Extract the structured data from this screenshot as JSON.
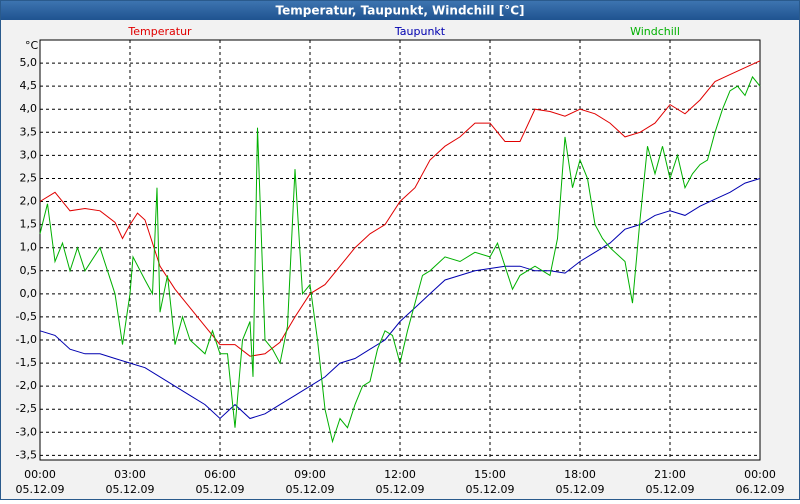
{
  "chart_data": {
    "type": "line",
    "title": "Temperatur, Taupunkt, Windchill [°C]",
    "y_unit": "°C",
    "grid": true,
    "xlim": [
      0,
      24
    ],
    "xticks": [
      {
        "value": 0,
        "label": "00:00"
      },
      {
        "value": 3,
        "label": "03:00"
      },
      {
        "value": 6,
        "label": "06:00"
      },
      {
        "value": 9,
        "label": "09:00"
      },
      {
        "value": 12,
        "label": "12:00"
      },
      {
        "value": 15,
        "label": "15:00"
      },
      {
        "value": 18,
        "label": "18:00"
      },
      {
        "value": 21,
        "label": "21:00"
      },
      {
        "value": 24,
        "label": "00:00"
      }
    ],
    "xtick_dates": [
      "05.12.09",
      "05.12.09",
      "05.12.09",
      "05.12.09",
      "05.12.09",
      "05.12.09",
      "05.12.09",
      "05.12.09",
      "06.12.09"
    ],
    "ylim": [
      -3.6,
      5.5
    ],
    "yticks": [
      {
        "value": -3.5,
        "label": "-3,5"
      },
      {
        "value": -3,
        "label": "-3,0"
      },
      {
        "value": -2.5,
        "label": "-2,5"
      },
      {
        "value": -2,
        "label": "-2,0"
      },
      {
        "value": -1.5,
        "label": "-1,5"
      },
      {
        "value": -1,
        "label": "-1,0"
      },
      {
        "value": -0.5,
        "label": "-0,5"
      },
      {
        "value": 0,
        "label": "0,0"
      },
      {
        "value": 0.5,
        "label": "0,5"
      },
      {
        "value": 1,
        "label": "1,0"
      },
      {
        "value": 1.5,
        "label": "1,5"
      },
      {
        "value": 2,
        "label": "2,0"
      },
      {
        "value": 2.5,
        "label": "2,5"
      },
      {
        "value": 3,
        "label": "3,0"
      },
      {
        "value": 3.5,
        "label": "3,5"
      },
      {
        "value": 4,
        "label": "4,0"
      },
      {
        "value": 4.5,
        "label": "4,5"
      },
      {
        "value": 5,
        "label": "5,0"
      }
    ],
    "series": [
      {
        "name": "Temperatur",
        "color": "#e00000",
        "x": [
          0,
          0.5,
          1,
          1.5,
          2,
          2.5,
          2.75,
          3,
          3.25,
          3.5,
          4,
          4.5,
          5,
          5.5,
          6,
          6.5,
          7,
          7.5,
          8,
          8.5,
          9,
          9.5,
          10,
          10.5,
          11,
          11.5,
          12,
          12.5,
          13,
          13.5,
          14,
          14.5,
          15,
          15.5,
          16,
          16.5,
          17,
          17.5,
          18,
          18.5,
          19,
          19.5,
          20,
          20.5,
          21,
          21.5,
          22,
          22.5,
          23,
          23.5,
          24
        ],
        "values": [
          2.0,
          2.2,
          1.8,
          1.85,
          1.8,
          1.55,
          1.2,
          1.5,
          1.75,
          1.6,
          0.6,
          0.1,
          -0.3,
          -0.7,
          -1.1,
          -1.1,
          -1.35,
          -1.3,
          -1.05,
          -0.5,
          0.0,
          0.2,
          0.6,
          1.0,
          1.3,
          1.5,
          2.0,
          2.3,
          2.9,
          3.2,
          3.4,
          3.7,
          3.7,
          3.3,
          3.3,
          4.0,
          3.95,
          3.85,
          4.0,
          3.9,
          3.7,
          3.4,
          3.5,
          3.7,
          4.1,
          3.9,
          4.2,
          4.6,
          4.75,
          4.9,
          5.05
        ]
      },
      {
        "name": "Taupunkt",
        "color": "#0000b0",
        "x": [
          0,
          0.5,
          1,
          1.5,
          2,
          2.5,
          3,
          3.5,
          4,
          4.5,
          5,
          5.5,
          6,
          6.5,
          7,
          7.5,
          8,
          8.5,
          9,
          9.5,
          10,
          10.5,
          11,
          11.5,
          12,
          12.5,
          13,
          13.5,
          14,
          14.5,
          15,
          15.5,
          16,
          16.5,
          17,
          17.5,
          18,
          18.5,
          19,
          19.5,
          20,
          20.5,
          21,
          21.5,
          22,
          22.5,
          23,
          23.5,
          24
        ],
        "values": [
          -0.8,
          -0.9,
          -1.2,
          -1.3,
          -1.3,
          -1.4,
          -1.5,
          -1.6,
          -1.8,
          -2.0,
          -2.2,
          -2.4,
          -2.7,
          -2.4,
          -2.7,
          -2.6,
          -2.4,
          -2.2,
          -2.0,
          -1.8,
          -1.5,
          -1.4,
          -1.2,
          -1.0,
          -0.6,
          -0.3,
          0.0,
          0.3,
          0.4,
          0.5,
          0.55,
          0.6,
          0.6,
          0.5,
          0.5,
          0.45,
          0.7,
          0.9,
          1.1,
          1.4,
          1.5,
          1.7,
          1.8,
          1.7,
          1.9,
          2.05,
          2.2,
          2.4,
          2.5
        ]
      },
      {
        "name": "Windchill",
        "color": "#00b000",
        "x": [
          0,
          0.25,
          0.5,
          0.75,
          1,
          1.25,
          1.5,
          2,
          2.5,
          2.75,
          3,
          3.1,
          3.5,
          3.75,
          3.9,
          4,
          4.25,
          4.5,
          4.75,
          5,
          5.5,
          5.75,
          6,
          6.25,
          6.5,
          6.75,
          7,
          7.1,
          7.25,
          7.5,
          7.75,
          8,
          8.25,
          8.5,
          8.75,
          9,
          9.25,
          9.5,
          9.75,
          10,
          10.25,
          10.5,
          10.75,
          11,
          11.25,
          11.5,
          11.75,
          12,
          12.25,
          12.5,
          12.75,
          13,
          13.5,
          14,
          14.5,
          15,
          15.25,
          15.5,
          15.75,
          16,
          16.5,
          17,
          17.25,
          17.5,
          17.75,
          18,
          18.25,
          18.5,
          18.75,
          19,
          19.5,
          19.75,
          20,
          20.25,
          20.5,
          20.75,
          21,
          21.25,
          21.5,
          21.75,
          22,
          22.25,
          22.5,
          22.75,
          23,
          23.25,
          23.5,
          23.75,
          24
        ],
        "values": [
          1.3,
          1.95,
          0.7,
          1.1,
          0.5,
          1.0,
          0.5,
          1.0,
          0.0,
          -1.1,
          0.0,
          0.8,
          0.3,
          0.0,
          2.3,
          -0.4,
          0.4,
          -1.1,
          -0.5,
          -1.0,
          -1.3,
          -0.8,
          -1.3,
          -1.3,
          -2.9,
          -1.0,
          -0.6,
          -1.8,
          3.6,
          -1.0,
          -1.2,
          -1.5,
          -0.7,
          2.7,
          0.0,
          0.2,
          -1.0,
          -2.5,
          -3.2,
          -2.7,
          -2.9,
          -2.4,
          -2.0,
          -1.9,
          -1.2,
          -0.8,
          -0.9,
          -1.5,
          -0.8,
          -0.2,
          0.4,
          0.5,
          0.8,
          0.7,
          0.9,
          0.8,
          1.1,
          0.6,
          0.1,
          0.4,
          0.6,
          0.4,
          1.2,
          3.4,
          2.3,
          2.9,
          2.5,
          1.5,
          1.2,
          1.0,
          0.7,
          -0.2,
          1.6,
          3.2,
          2.6,
          3.2,
          2.5,
          3.0,
          2.3,
          2.6,
          2.8,
          2.9,
          3.5,
          4.0,
          4.4,
          4.5,
          4.3,
          4.7,
          4.5
        ]
      }
    ]
  }
}
